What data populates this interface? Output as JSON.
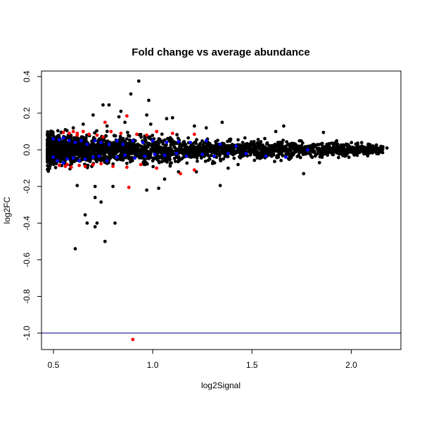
{
  "chart_data": {
    "type": "scatter",
    "title": "Fold change vs average abundance",
    "xlabel": "log2Signal",
    "ylabel": "log2FC",
    "xlim": [
      0.44,
      2.25
    ],
    "ylim": [
      -1.09,
      0.43
    ],
    "x_ticks": [
      "0.5",
      "1.0",
      "1.5",
      "2.0"
    ],
    "y_ticks": [
      "-1.0",
      "-0.8",
      "-0.6",
      "-0.4",
      "-0.2",
      "0.0",
      "0.2",
      "0.4"
    ],
    "reference_lines": [
      {
        "y": -1.0,
        "color": "#00008b"
      }
    ],
    "grid": false,
    "colors": {
      "black": "#000000",
      "red": "#ff0000",
      "blue": "#0000ff",
      "line": "#00008b"
    },
    "series": [
      {
        "color": "#000000",
        "dense_band": {
          "x_range": [
            0.47,
            2.16
          ],
          "y_center": 0.0,
          "y_spread": 0.06
        },
        "points": [
          [
            0.93,
            0.375
          ],
          [
            0.89,
            0.305
          ],
          [
            0.98,
            0.27
          ],
          [
            0.84,
            0.21
          ],
          [
            0.75,
            0.245
          ],
          [
            0.78,
            0.245
          ],
          [
            0.7,
            0.19
          ],
          [
            0.97,
            0.19
          ],
          [
            0.83,
            0.18
          ],
          [
            1.07,
            0.17
          ],
          [
            1.1,
            0.175
          ],
          [
            1.35,
            0.15
          ],
          [
            1.66,
            0.13
          ],
          [
            1.86,
            0.095
          ],
          [
            1.62,
            0.1
          ],
          [
            0.62,
            -0.195
          ],
          [
            0.71,
            -0.2
          ],
          [
            0.8,
            -0.2
          ],
          [
            1.34,
            -0.195
          ],
          [
            0.71,
            -0.26
          ],
          [
            0.74,
            -0.285
          ],
          [
            0.66,
            -0.355
          ],
          [
            0.67,
            -0.4
          ],
          [
            0.72,
            -0.4
          ],
          [
            0.81,
            -0.4
          ],
          [
            0.71,
            -0.42
          ],
          [
            0.76,
            -0.5
          ],
          [
            0.61,
            -0.54
          ],
          [
            0.97,
            -0.22
          ],
          [
            1.03,
            -0.21
          ],
          [
            1.06,
            -0.16
          ],
          [
            1.13,
            -0.12
          ],
          [
            1.22,
            -0.12
          ],
          [
            1.38,
            -0.1
          ],
          [
            1.43,
            -0.08
          ],
          [
            1.76,
            -0.13
          ],
          [
            1.84,
            -0.07
          ],
          [
            2.03,
            -0.03
          ],
          [
            2.14,
            0.005
          ],
          [
            2.18,
            0.01
          ],
          [
            0.99,
            0.14
          ],
          [
            1.21,
            0.13
          ],
          [
            1.27,
            0.12
          ],
          [
            0.77,
            0.13
          ],
          [
            0.65,
            0.14
          ],
          [
            0.6,
            0.12
          ],
          [
            0.56,
            0.11
          ],
          [
            0.86,
            0.15
          ]
        ]
      },
      {
        "color": "#ff0000",
        "points": [
          [
            0.9,
            -1.035
          ],
          [
            0.87,
            0.185
          ],
          [
            0.76,
            0.15
          ],
          [
            0.88,
            -0.205
          ],
          [
            0.55,
            0.095
          ],
          [
            0.58,
            0.09
          ],
          [
            0.6,
            0.1
          ],
          [
            0.62,
            0.09
          ],
          [
            0.65,
            0.1
          ],
          [
            0.68,
            0.085
          ],
          [
            0.72,
            0.08
          ],
          [
            0.75,
            0.07
          ],
          [
            0.79,
            0.1
          ],
          [
            0.84,
            0.09
          ],
          [
            0.92,
            0.085
          ],
          [
            0.97,
            0.08
          ],
          [
            1.02,
            0.1
          ],
          [
            1.1,
            0.09
          ],
          [
            1.21,
            0.085
          ],
          [
            0.53,
            -0.085
          ],
          [
            0.56,
            -0.09
          ],
          [
            0.59,
            -0.095
          ],
          [
            0.63,
            -0.085
          ],
          [
            0.66,
            -0.09
          ],
          [
            0.7,
            -0.08
          ],
          [
            0.74,
            -0.075
          ],
          [
            0.8,
            -0.09
          ],
          [
            0.87,
            -0.095
          ],
          [
            0.94,
            -0.08
          ],
          [
            1.02,
            -0.1
          ],
          [
            1.14,
            -0.13
          ],
          [
            1.21,
            -0.11
          ],
          [
            0.62,
            0.08
          ],
          [
            0.57,
            -0.08
          ]
        ]
      },
      {
        "color": "#0000ff",
        "points": [
          [
            0.5,
            0.06
          ],
          [
            0.53,
            0.055
          ],
          [
            0.55,
            0.065
          ],
          [
            0.58,
            0.05
          ],
          [
            0.61,
            0.04
          ],
          [
            0.64,
            0.05
          ],
          [
            0.67,
            0.03
          ],
          [
            0.71,
            0.05
          ],
          [
            0.74,
            0.04
          ],
          [
            0.78,
            0.03
          ],
          [
            0.82,
            0.05
          ],
          [
            0.85,
            0.03
          ],
          [
            0.9,
            0.05
          ],
          [
            0.95,
            0.04
          ],
          [
            1.0,
            0.05
          ],
          [
            1.07,
            0.04
          ],
          [
            1.13,
            0.045
          ],
          [
            1.19,
            0.04
          ],
          [
            1.27,
            0.05
          ],
          [
            1.34,
            0.03
          ],
          [
            1.42,
            0.02
          ],
          [
            0.5,
            -0.04
          ],
          [
            0.52,
            -0.06
          ],
          [
            0.55,
            -0.07
          ],
          [
            0.57,
            -0.05
          ],
          [
            0.6,
            -0.045
          ],
          [
            0.63,
            -0.06
          ],
          [
            0.66,
            -0.05
          ],
          [
            0.7,
            -0.04
          ],
          [
            0.73,
            -0.035
          ],
          [
            0.77,
            -0.06
          ],
          [
            0.82,
            -0.04
          ],
          [
            0.86,
            -0.03
          ],
          [
            0.91,
            -0.045
          ],
          [
            0.96,
            -0.035
          ],
          [
            1.01,
            -0.025
          ],
          [
            1.06,
            -0.03
          ],
          [
            1.12,
            -0.02
          ],
          [
            1.17,
            -0.035
          ],
          [
            1.25,
            -0.025
          ],
          [
            1.31,
            -0.035
          ],
          [
            1.38,
            -0.02
          ],
          [
            1.47,
            -0.02
          ],
          [
            1.57,
            -0.035
          ],
          [
            1.67,
            -0.04
          ],
          [
            1.78,
            0.0
          ]
        ]
      }
    ]
  }
}
